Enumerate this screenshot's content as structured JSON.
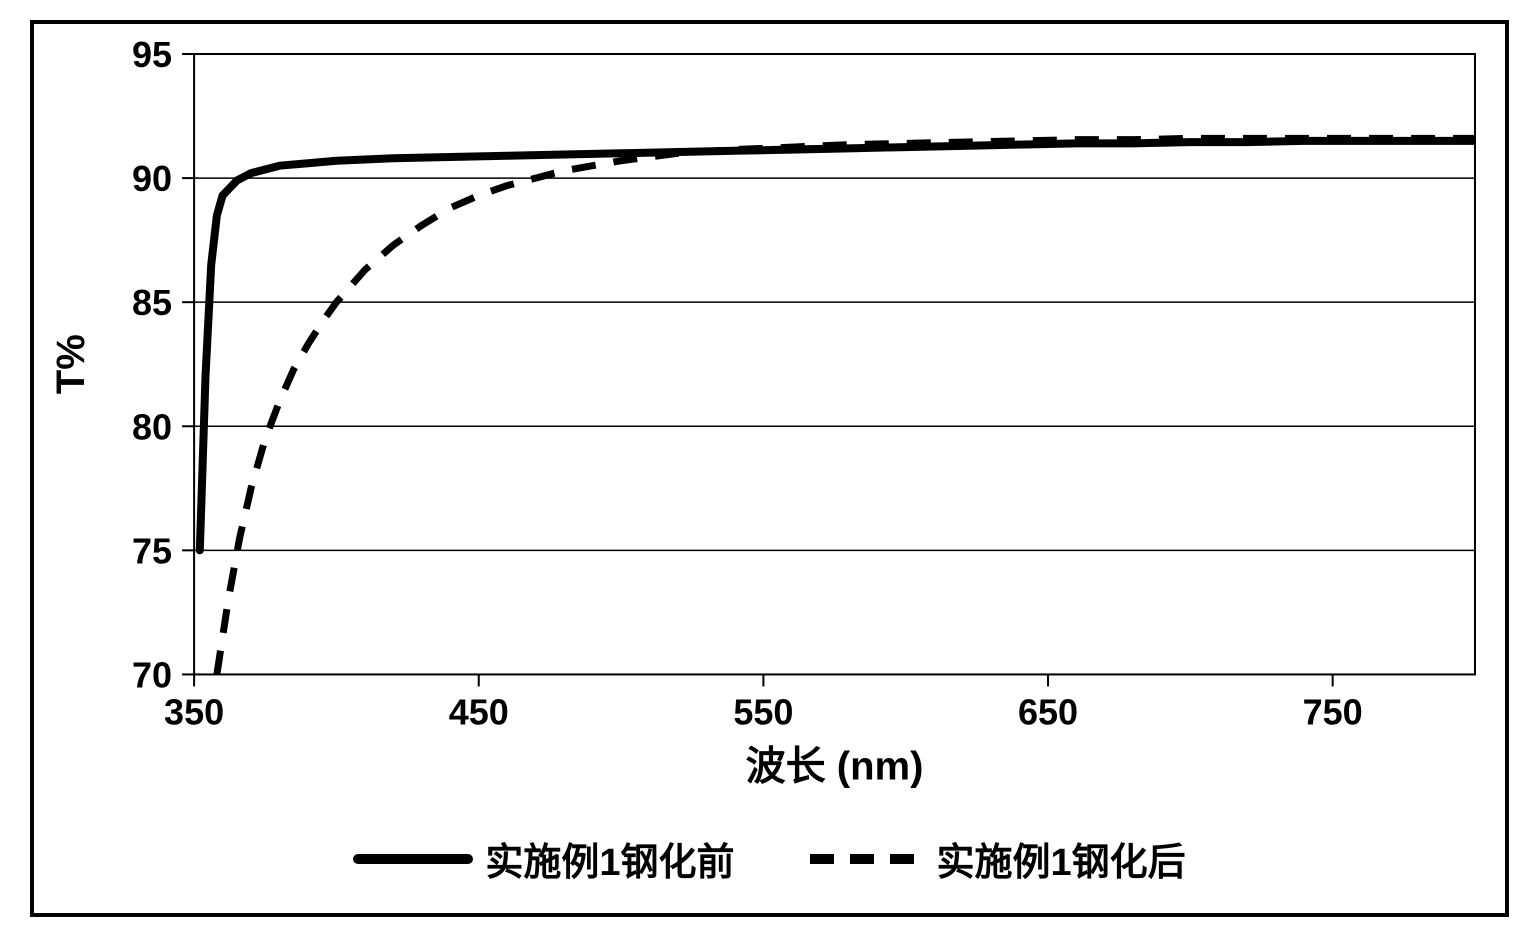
{
  "chart": {
    "type": "line",
    "background_color": "#ffffff",
    "border_color": "#000000",
    "border_width": 4,
    "plot": {
      "xlim": [
        350,
        800
      ],
      "ylim": [
        70,
        95
      ],
      "xtick_step": 100,
      "ytick_step": 5,
      "xticks": [
        350,
        450,
        550,
        650,
        750
      ],
      "yticks": [
        70,
        75,
        80,
        85,
        90,
        95
      ],
      "grid_y_color": "#000000",
      "grid_y_width": 1.5,
      "plot_area_border": true
    },
    "xlabel": "波长 (nm)",
    "ylabel": "T%",
    "label_fontsize": 40,
    "tick_fontsize": 36,
    "series": [
      {
        "id": "before",
        "label": "实施例1钢化前",
        "style": "solid",
        "color": "#000000",
        "width": 8,
        "points": [
          [
            352,
            75.0
          ],
          [
            354,
            82.0
          ],
          [
            356,
            86.5
          ],
          [
            358,
            88.5
          ],
          [
            360,
            89.3
          ],
          [
            365,
            89.9
          ],
          [
            370,
            90.2
          ],
          [
            380,
            90.5
          ],
          [
            390,
            90.6
          ],
          [
            400,
            90.7
          ],
          [
            420,
            90.8
          ],
          [
            440,
            90.85
          ],
          [
            460,
            90.9
          ],
          [
            480,
            90.95
          ],
          [
            500,
            91.0
          ],
          [
            520,
            91.05
          ],
          [
            540,
            91.1
          ],
          [
            560,
            91.15
          ],
          [
            580,
            91.2
          ],
          [
            600,
            91.25
          ],
          [
            620,
            91.3
          ],
          [
            640,
            91.35
          ],
          [
            660,
            91.4
          ],
          [
            680,
            91.4
          ],
          [
            700,
            91.45
          ],
          [
            720,
            91.45
          ],
          [
            740,
            91.5
          ],
          [
            760,
            91.5
          ],
          [
            780,
            91.5
          ],
          [
            800,
            91.5
          ]
        ]
      },
      {
        "id": "after",
        "label": "实施例1钢化后",
        "style": "dashed",
        "color": "#000000",
        "width": 7,
        "dash": "24 18",
        "points": [
          [
            358,
            70.0
          ],
          [
            362,
            73.0
          ],
          [
            366,
            75.5
          ],
          [
            370,
            77.5
          ],
          [
            375,
            79.5
          ],
          [
            380,
            81.0
          ],
          [
            385,
            82.3
          ],
          [
            390,
            83.3
          ],
          [
            395,
            84.2
          ],
          [
            400,
            85.0
          ],
          [
            410,
            86.3
          ],
          [
            420,
            87.3
          ],
          [
            430,
            88.1
          ],
          [
            440,
            88.8
          ],
          [
            450,
            89.3
          ],
          [
            460,
            89.7
          ],
          [
            470,
            90.0
          ],
          [
            480,
            90.3
          ],
          [
            490,
            90.5
          ],
          [
            500,
            90.7
          ],
          [
            520,
            91.0
          ],
          [
            540,
            91.15
          ],
          [
            560,
            91.25
          ],
          [
            580,
            91.35
          ],
          [
            600,
            91.4
          ],
          [
            620,
            91.45
          ],
          [
            640,
            91.5
          ],
          [
            660,
            91.55
          ],
          [
            680,
            91.55
          ],
          [
            700,
            91.6
          ],
          [
            720,
            91.6
          ],
          [
            740,
            91.6
          ],
          [
            760,
            91.6
          ],
          [
            780,
            91.6
          ],
          [
            800,
            91.6
          ]
        ]
      }
    ],
    "legend": {
      "position": "bottom",
      "items": [
        {
          "series": "before",
          "label": "实施例1钢化前"
        },
        {
          "series": "after",
          "label": "实施例1钢化后"
        }
      ]
    }
  }
}
